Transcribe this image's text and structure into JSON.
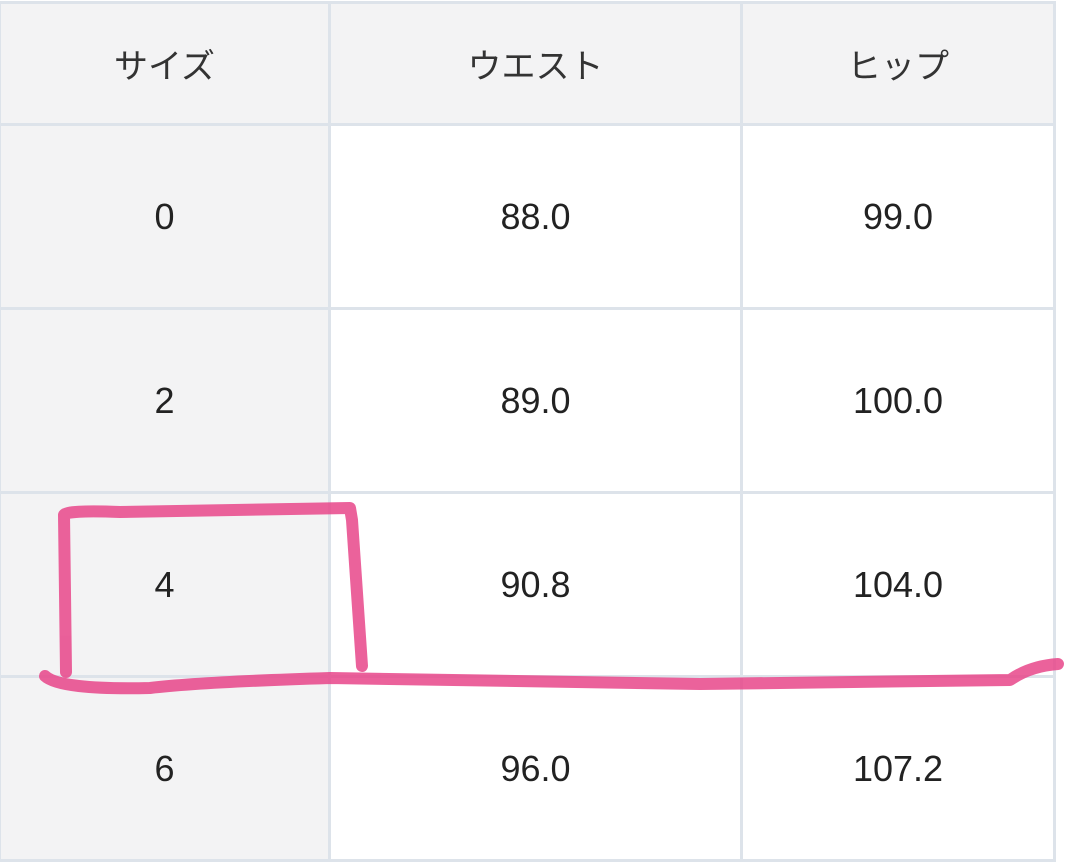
{
  "table": {
    "headers": [
      "サイズ",
      "ウエスト",
      "ヒップ"
    ],
    "rows": [
      [
        "0",
        "88.0",
        "99.0"
      ],
      [
        "2",
        "89.0",
        "100.0"
      ],
      [
        "4",
        "90.8",
        "104.0"
      ],
      [
        "6",
        "96.0",
        "107.2"
      ]
    ]
  },
  "annotation": {
    "color": "#e8468a",
    "highlighted_row": "4"
  }
}
